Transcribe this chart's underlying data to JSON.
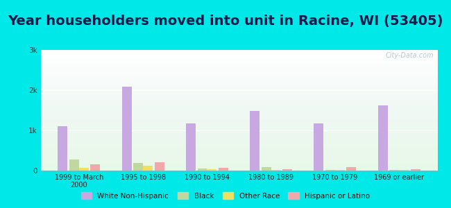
{
  "title": "Year householders moved into unit in Racine, WI (53405)",
  "categories": [
    "1999 to March\n2000",
    "1995 to 1998",
    "1990 to 1994",
    "1980 to 1989",
    "1970 to 1979",
    "1969 or earlier"
  ],
  "series": {
    "White Non-Hispanic": [
      1100,
      2080,
      1180,
      1480,
      1170,
      1620
    ],
    "Black": [
      280,
      190,
      45,
      90,
      25,
      25
    ],
    "Other Race": [
      70,
      120,
      40,
      15,
      18,
      15
    ],
    "Hispanic or Latino": [
      155,
      215,
      75,
      28,
      85,
      28
    ]
  },
  "colors": {
    "White Non-Hispanic": "#c8a8e0",
    "Black": "#c0d8a0",
    "Other Race": "#f0e060",
    "Hispanic or Latino": "#f0a8a8"
  },
  "ylim": [
    0,
    3000
  ],
  "yticks": [
    0,
    1000,
    2000,
    3000
  ],
  "ytick_labels": [
    "0",
    "1k",
    "2k",
    "3k"
  ],
  "background_color": "#00e8e8",
  "title_color": "#1a1a4a",
  "title_fontsize": 14,
  "watermark": "City-Data.com"
}
